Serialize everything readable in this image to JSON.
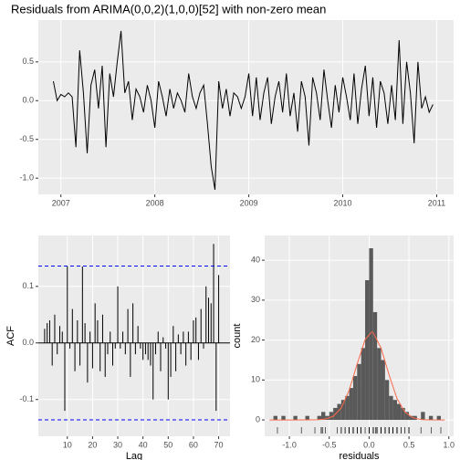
{
  "chart_data": [
    {
      "type": "line",
      "title": "Residuals from ARIMA(0,0,2)(1,0,0)[52] with non-zero mean",
      "color": "#000000",
      "grid": true,
      "x": [
        2006.92,
        2006.96,
        2007.0,
        2007.04,
        2007.08,
        2007.12,
        2007.16,
        2007.2,
        2007.24,
        2007.28,
        2007.32,
        2007.36,
        2007.4,
        2007.44,
        2007.48,
        2007.52,
        2007.56,
        2007.6,
        2007.64,
        2007.68,
        2007.72,
        2007.76,
        2007.8,
        2007.84,
        2007.88,
        2007.92,
        2007.96,
        2008.0,
        2008.04,
        2008.08,
        2008.12,
        2008.16,
        2008.2,
        2008.24,
        2008.28,
        2008.32,
        2008.36,
        2008.4,
        2008.44,
        2008.48,
        2008.52,
        2008.56,
        2008.6,
        2008.64,
        2008.68,
        2008.72,
        2008.76,
        2008.8,
        2008.84,
        2008.88,
        2008.92,
        2008.96,
        2009.0,
        2009.04,
        2009.08,
        2009.12,
        2009.16,
        2009.2,
        2009.24,
        2009.28,
        2009.32,
        2009.36,
        2009.4,
        2009.44,
        2009.48,
        2009.52,
        2009.56,
        2009.6,
        2009.64,
        2009.68,
        2009.72,
        2009.76,
        2009.8,
        2009.84,
        2009.88,
        2009.92,
        2009.96,
        2010.0,
        2010.04,
        2010.08,
        2010.12,
        2010.16,
        2010.2,
        2010.24,
        2010.28,
        2010.32,
        2010.36,
        2010.4,
        2010.44,
        2010.48,
        2010.52,
        2010.56,
        2010.6,
        2010.64,
        2010.68,
        2010.72,
        2010.76,
        2010.8,
        2010.84,
        2010.88,
        2010.92,
        2010.96
      ],
      "values": [
        0.25,
        0.0,
        0.08,
        0.05,
        0.1,
        0.05,
        -0.6,
        0.65,
        0.1,
        -0.68,
        0.2,
        0.4,
        -0.1,
        0.45,
        -0.6,
        0.35,
        0.05,
        0.5,
        0.9,
        0.1,
        0.25,
        -0.25,
        0.15,
        0.05,
        -0.15,
        0.2,
        0.0,
        -0.35,
        0.25,
        0.05,
        -0.2,
        0.15,
        -0.1,
        0.1,
        0.0,
        -0.15,
        0.35,
        0.05,
        -0.1,
        0.1,
        0.2,
        -0.3,
        -0.85,
        -1.15,
        0.25,
        -0.1,
        0.15,
        -0.2,
        0.1,
        0.05,
        -0.1,
        0.05,
        0.35,
        -0.2,
        0.3,
        -0.25,
        0.1,
        0.3,
        -0.3,
        0.05,
        0.25,
        -0.15,
        0.35,
        -0.2,
        0.1,
        -0.4,
        0.25,
        0.05,
        -0.58,
        0.3,
        0.1,
        -0.25,
        0.4,
        0.0,
        -0.35,
        0.2,
        -0.15,
        0.3,
        0.05,
        -0.25,
        0.35,
        -0.3,
        0.15,
        0.45,
        -0.2,
        0.3,
        -0.35,
        0.25,
        0.1,
        -0.3,
        0.2,
        -0.25,
        0.78,
        -0.3,
        0.5,
        0.1,
        -0.55,
        0.5,
        -0.1,
        0.05,
        -0.15,
        -0.05
      ],
      "xlim": [
        2006.76,
        2011.18
      ],
      "xticks": [
        2007,
        2008,
        2009,
        2010,
        2011
      ],
      "ylim": [
        -1.21,
        1.04
      ],
      "yticks": [
        {
          "value": -1,
          "label": "-1.0"
        },
        -0.5,
        {
          "value": 0,
          "label": "0.0"
        },
        0.5
      ]
    },
    {
      "type": "bar",
      "x_label": "Lag",
      "y_label": "ACF",
      "color": "#000000",
      "grid": true,
      "ci": [
        -0.136,
        0.136
      ],
      "ci_color": "#0000ff",
      "x": [
        1,
        2,
        3,
        4,
        5,
        6,
        7,
        8,
        9,
        10,
        11,
        12,
        13,
        14,
        15,
        16,
        17,
        18,
        19,
        20,
        21,
        22,
        23,
        24,
        25,
        26,
        27,
        28,
        29,
        30,
        31,
        32,
        33,
        34,
        35,
        36,
        37,
        38,
        39,
        40,
        41,
        42,
        43,
        44,
        45,
        46,
        47,
        48,
        49,
        50,
        51,
        52,
        53,
        54,
        55,
        56,
        57,
        58,
        59,
        60,
        61,
        62,
        63,
        64,
        65,
        66,
        67,
        68,
        69,
        70
      ],
      "values": [
        0.025,
        0.035,
        0.04,
        -0.04,
        0.05,
        -0.02,
        0.03,
        0.02,
        -0.12,
        0.135,
        -0.01,
        0.06,
        -0.05,
        0.04,
        -0.04,
        0.135,
        0.035,
        -0.07,
        0.02,
        -0.045,
        0.07,
        0.04,
        -0.05,
        0.05,
        -0.06,
        -0.02,
        0.02,
        -0.04,
        -0.01,
        0.1,
        -0.01,
        0.02,
        -0.02,
        0.06,
        -0.06,
        0.07,
        -0.02,
        0.03,
        -0.01,
        -0.03,
        -0.02,
        -0.03,
        -0.04,
        -0.1,
        -0.02,
        0.02,
        -0.05,
        0.01,
        -0.01,
        -0.1,
        -0.06,
        0.03,
        -0.05,
        0.015,
        -0.02,
        0.02,
        -0.04,
        0.02,
        -0.03,
        0.04,
        0.045,
        -0.03,
        0.06,
        -0.01,
        0.1,
        0.08,
        0.07,
        0.175,
        -0.12,
        0.12
      ],
      "xlim": [
        -1.5,
        74.5
      ],
      "xticks": [
        10,
        20,
        30,
        40,
        50,
        60,
        70
      ],
      "ylim": [
        -0.165,
        0.19
      ],
      "yticks": [
        -0.1,
        {
          "value": 0,
          "label": "0.0"
        },
        0.1
      ]
    },
    {
      "type": "histogram",
      "x_label": "residuals",
      "y_label": "count",
      "color": "#595959",
      "grid": true,
      "rug": true,
      "bins": [
        -1.25,
        -1.2,
        -1.15,
        -1.1,
        -1.05,
        -1.0,
        -0.95,
        -0.9,
        -0.85,
        -0.8,
        -0.75,
        -0.7,
        -0.65,
        -0.6,
        -0.55,
        -0.5,
        -0.45,
        -0.4,
        -0.35,
        -0.3,
        -0.25,
        -0.2,
        -0.15,
        -0.1,
        -0.05,
        0.0,
        0.05,
        0.1,
        0.15,
        0.2,
        0.25,
        0.3,
        0.35,
        0.4,
        0.45,
        0.5,
        0.55,
        0.6,
        0.65,
        0.7,
        0.75,
        0.8,
        0.85,
        0.9,
        0.95
      ],
      "values": [
        0,
        1,
        0,
        1,
        0,
        0,
        1,
        0,
        0,
        1,
        0,
        0,
        1,
        2,
        1,
        2,
        3,
        4,
        5,
        6,
        8,
        11,
        14,
        18,
        35,
        43,
        27,
        18,
        15,
        10,
        6,
        5,
        4,
        3,
        2,
        1,
        1,
        0,
        2,
        0,
        1,
        0,
        1,
        0
      ],
      "curve_color": "#f8694a",
      "curve_x": [
        -1.25,
        -0.95,
        -0.75,
        -0.65,
        -0.55,
        -0.45,
        -0.35,
        -0.25,
        -0.15,
        -0.05,
        0.03,
        0.05,
        0.15,
        0.25,
        0.35,
        0.45,
        0.55,
        0.65,
        0.75,
        0.95
      ],
      "curve_values": [
        0,
        0,
        0.01,
        0.04,
        0.21,
        0.9,
        2.98,
        7.43,
        14,
        20.1,
        22,
        21.9,
        18,
        11.3,
        5.33,
        1.91,
        0.52,
        0.11,
        0.02,
        0
      ],
      "xlim": [
        -1.31,
        1.06
      ],
      "xticks": [
        {
          "value": -1,
          "label": "-1.0"
        },
        -0.5,
        {
          "value": 0,
          "label": "0.0"
        },
        0.5,
        {
          "value": 1,
          "label": "1.0"
        }
      ],
      "ylim": [
        -4.1,
        46.2
      ],
      "yticks": [
        0,
        10,
        20,
        30,
        40
      ]
    }
  ]
}
